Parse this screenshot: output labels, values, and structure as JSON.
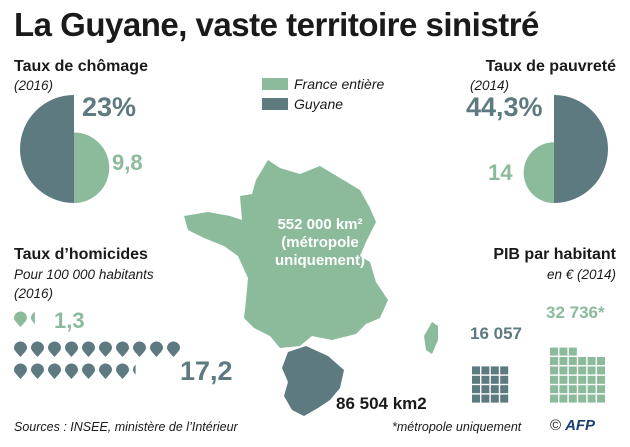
{
  "title": "La Guyane, vaste territoire sinistré",
  "colors": {
    "france": "#8cbb9c",
    "guyane": "#5d7a80"
  },
  "legend": {
    "france_label": "France entière",
    "guyane_label": "Guyane"
  },
  "chomage": {
    "title": "Taux de chômage",
    "year": "(2016)",
    "guyane_label": "23%",
    "france_label": "9,8"
  },
  "pauvrete": {
    "title": "Taux de pauvreté",
    "year": "(2014)",
    "guyane_label": "44,3%",
    "france_label": "14"
  },
  "homicides": {
    "title": "Taux d’homicides",
    "unit": "Pour 100 000 habitants",
    "year": "(2016)",
    "france_label": "1,3",
    "guyane_label": "17,2"
  },
  "pib": {
    "title": "PIB par habitant",
    "unit": "en € (2014)",
    "guyane_label": "16 057",
    "france_label": "32 736*"
  },
  "map": {
    "france_area_line1": "552 000 km²",
    "france_area_line2": "(métropole",
    "france_area_line3": "uniquement)",
    "guyane_area": "86 504 km2"
  },
  "footer": {
    "source": "Sources : INSEE, ministère de l’Intérieur",
    "note": "*métropole uniquement",
    "copyright": "©",
    "agency": "AFP"
  },
  "chart_data": [
    {
      "type": "pie",
      "title": "Taux de chômage",
      "unit": "%",
      "year": "2016",
      "series": [
        {
          "name": "France entière",
          "values": [
            9.8
          ]
        },
        {
          "name": "Guyane",
          "values": [
            23
          ]
        }
      ]
    },
    {
      "type": "pie",
      "title": "Taux de pauvreté",
      "unit": "%",
      "year": "2014",
      "series": [
        {
          "name": "France entière",
          "values": [
            14
          ]
        },
        {
          "name": "Guyane",
          "values": [
            44.3
          ]
        }
      ]
    },
    {
      "type": "bar",
      "title": "Taux d’homicides",
      "unit": "Pour 100 000 habitants",
      "year": "2016",
      "series": [
        {
          "name": "France entière",
          "values": [
            1.3
          ]
        },
        {
          "name": "Guyane",
          "values": [
            17.2
          ]
        }
      ]
    },
    {
      "type": "bar",
      "title": "PIB par habitant",
      "unit": "en € (2014)",
      "series": [
        {
          "name": "France entière",
          "values": [
            32736
          ]
        },
        {
          "name": "Guyane",
          "values": [
            16057
          ]
        }
      ]
    }
  ]
}
